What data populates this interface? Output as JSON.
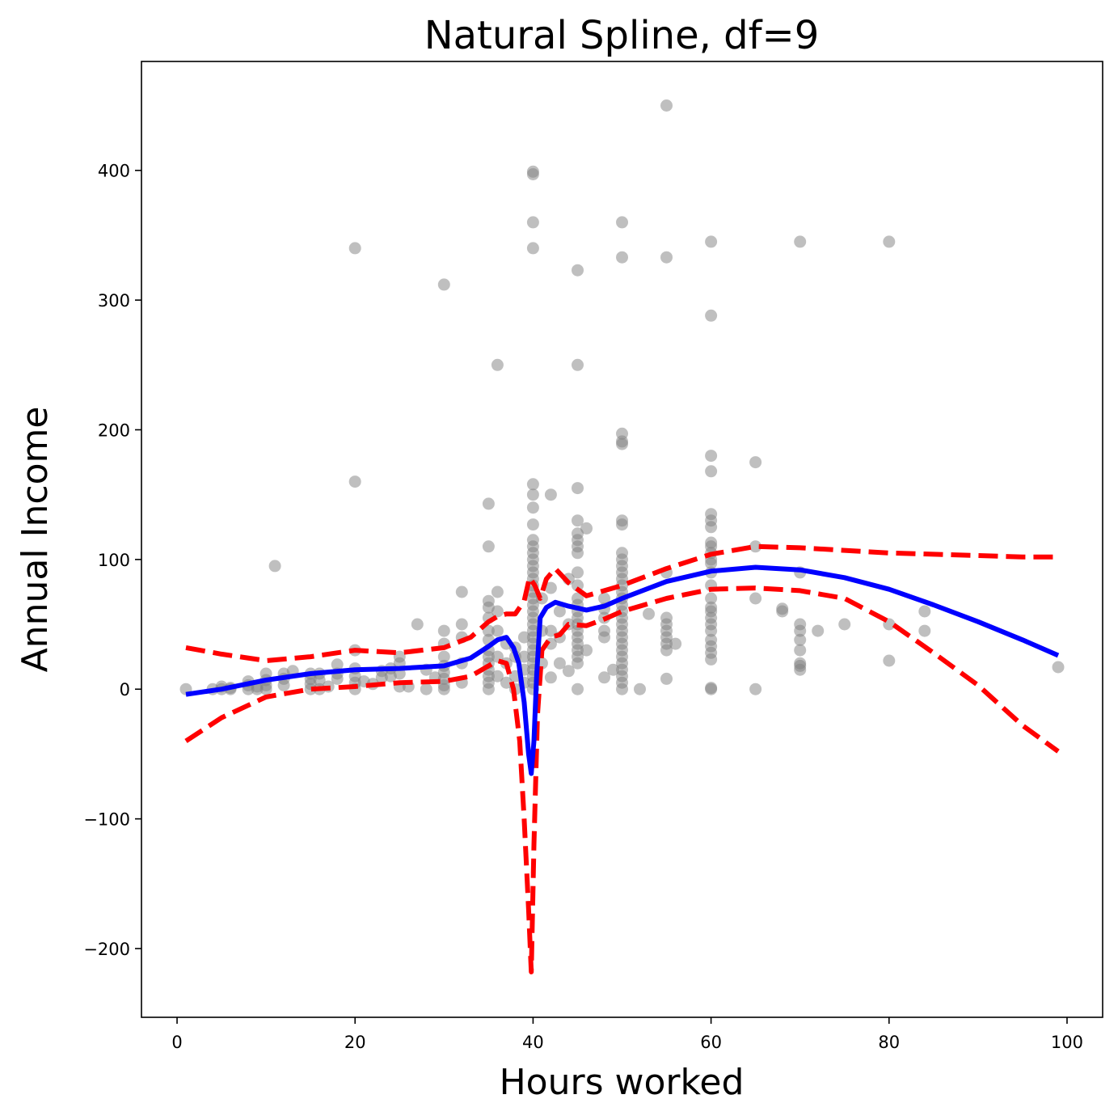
{
  "chart_data": {
    "type": "scatter",
    "title": "Natural Spline, df=9",
    "xlabel": "Hours worked",
    "ylabel": "Annual Income",
    "xlim": [
      -4,
      104
    ],
    "ylim": [
      -253,
      484
    ],
    "xticks": [
      0,
      20,
      40,
      60,
      80,
      100
    ],
    "yticks": [
      -200,
      -100,
      0,
      100,
      200,
      300,
      400
    ],
    "grid": false,
    "colors": {
      "points": "#808080",
      "fit": "#0000ff",
      "band": "#ff0000"
    },
    "points": [
      [
        1,
        0
      ],
      [
        4,
        0
      ],
      [
        5,
        0
      ],
      [
        5,
        2
      ],
      [
        6,
        0
      ],
      [
        6,
        1
      ],
      [
        8,
        0
      ],
      [
        8,
        3
      ],
      [
        8,
        6
      ],
      [
        9,
        0
      ],
      [
        9,
        2
      ],
      [
        10,
        0
      ],
      [
        10,
        3
      ],
      [
        10,
        7
      ],
      [
        10,
        12
      ],
      [
        11,
        95
      ],
      [
        12,
        3
      ],
      [
        12,
        8
      ],
      [
        12,
        12
      ],
      [
        13,
        14
      ],
      [
        15,
        0
      ],
      [
        15,
        4
      ],
      [
        15,
        8
      ],
      [
        15,
        12
      ],
      [
        16,
        0
      ],
      [
        16,
        7
      ],
      [
        16,
        12
      ],
      [
        17,
        2
      ],
      [
        18,
        8
      ],
      [
        18,
        12
      ],
      [
        18,
        19
      ],
      [
        20,
        0
      ],
      [
        20,
        5
      ],
      [
        20,
        10
      ],
      [
        20,
        16
      ],
      [
        20,
        30
      ],
      [
        20,
        160
      ],
      [
        20,
        340
      ],
      [
        21,
        6
      ],
      [
        22,
        4
      ],
      [
        23,
        9
      ],
      [
        23,
        14
      ],
      [
        24,
        10
      ],
      [
        24,
        16
      ],
      [
        25,
        2
      ],
      [
        25,
        12
      ],
      [
        25,
        20
      ],
      [
        25,
        25
      ],
      [
        26,
        2
      ],
      [
        27,
        50
      ],
      [
        28,
        0
      ],
      [
        28,
        15
      ],
      [
        29,
        9
      ],
      [
        30,
        0
      ],
      [
        30,
        3
      ],
      [
        30,
        8
      ],
      [
        30,
        13
      ],
      [
        30,
        18
      ],
      [
        30,
        25
      ],
      [
        30,
        35
      ],
      [
        30,
        45
      ],
      [
        30,
        312
      ],
      [
        32,
        5
      ],
      [
        32,
        20
      ],
      [
        32,
        40
      ],
      [
        32,
        50
      ],
      [
        32,
        75
      ],
      [
        35,
        0
      ],
      [
        35,
        5
      ],
      [
        35,
        10
      ],
      [
        35,
        15
      ],
      [
        35,
        20
      ],
      [
        35,
        25
      ],
      [
        35,
        30
      ],
      [
        35,
        38
      ],
      [
        35,
        45
      ],
      [
        35,
        55
      ],
      [
        35,
        63
      ],
      [
        35,
        68
      ],
      [
        35,
        110
      ],
      [
        35,
        143
      ],
      [
        36,
        10
      ],
      [
        36,
        25
      ],
      [
        36,
        45
      ],
      [
        36,
        60
      ],
      [
        36,
        75
      ],
      [
        36,
        250
      ],
      [
        37,
        5
      ],
      [
        37,
        20
      ],
      [
        37,
        35
      ],
      [
        38,
        0
      ],
      [
        38,
        10
      ],
      [
        38,
        25
      ],
      [
        38,
        32
      ],
      [
        39,
        5
      ],
      [
        39,
        15
      ],
      [
        39,
        25
      ],
      [
        39,
        40
      ],
      [
        40,
        0
      ],
      [
        40,
        5
      ],
      [
        40,
        10
      ],
      [
        40,
        15
      ],
      [
        40,
        20
      ],
      [
        40,
        25
      ],
      [
        40,
        30
      ],
      [
        40,
        35
      ],
      [
        40,
        40
      ],
      [
        40,
        45
      ],
      [
        40,
        50
      ],
      [
        40,
        55
      ],
      [
        40,
        60
      ],
      [
        40,
        65
      ],
      [
        40,
        70
      ],
      [
        40,
        75
      ],
      [
        40,
        80
      ],
      [
        40,
        85
      ],
      [
        40,
        90
      ],
      [
        40,
        95
      ],
      [
        40,
        100
      ],
      [
        40,
        105
      ],
      [
        40,
        110
      ],
      [
        40,
        115
      ],
      [
        40,
        127
      ],
      [
        40,
        140
      ],
      [
        40,
        150
      ],
      [
        40,
        158
      ],
      [
        40,
        340
      ],
      [
        40,
        360
      ],
      [
        40,
        397
      ],
      [
        40,
        399
      ],
      [
        41,
        20
      ],
      [
        41,
        45
      ],
      [
        41,
        70
      ],
      [
        42,
        9
      ],
      [
        42,
        35
      ],
      [
        42,
        45
      ],
      [
        42,
        78
      ],
      [
        42,
        150
      ],
      [
        43,
        20
      ],
      [
        43,
        40
      ],
      [
        43,
        60
      ],
      [
        44,
        14
      ],
      [
        44,
        50
      ],
      [
        44,
        85
      ],
      [
        45,
        0
      ],
      [
        45,
        20
      ],
      [
        45,
        25
      ],
      [
        45,
        30
      ],
      [
        45,
        35
      ],
      [
        45,
        40
      ],
      [
        45,
        45
      ],
      [
        45,
        50
      ],
      [
        45,
        55
      ],
      [
        45,
        60
      ],
      [
        45,
        65
      ],
      [
        45,
        70
      ],
      [
        45,
        80
      ],
      [
        45,
        90
      ],
      [
        45,
        105
      ],
      [
        45,
        110
      ],
      [
        45,
        115
      ],
      [
        45,
        120
      ],
      [
        45,
        130
      ],
      [
        45,
        155
      ],
      [
        45,
        250
      ],
      [
        45,
        323
      ],
      [
        46,
        30
      ],
      [
        46,
        124
      ],
      [
        48,
        9
      ],
      [
        48,
        40
      ],
      [
        48,
        45
      ],
      [
        48,
        55
      ],
      [
        48,
        62
      ],
      [
        48,
        70
      ],
      [
        49,
        15
      ],
      [
        50,
        0
      ],
      [
        50,
        5
      ],
      [
        50,
        10
      ],
      [
        50,
        15
      ],
      [
        50,
        20
      ],
      [
        50,
        25
      ],
      [
        50,
        30
      ],
      [
        50,
        35
      ],
      [
        50,
        40
      ],
      [
        50,
        45
      ],
      [
        50,
        50
      ],
      [
        50,
        55
      ],
      [
        50,
        60
      ],
      [
        50,
        65
      ],
      [
        50,
        70
      ],
      [
        50,
        75
      ],
      [
        50,
        80
      ],
      [
        50,
        85
      ],
      [
        50,
        90
      ],
      [
        50,
        95
      ],
      [
        50,
        100
      ],
      [
        50,
        105
      ],
      [
        50,
        127
      ],
      [
        50,
        130
      ],
      [
        50,
        189
      ],
      [
        50,
        191
      ],
      [
        50,
        197
      ],
      [
        50,
        333
      ],
      [
        50,
        360
      ],
      [
        52,
        0
      ],
      [
        53,
        58
      ],
      [
        55,
        8
      ],
      [
        55,
        30
      ],
      [
        55,
        35
      ],
      [
        55,
        40
      ],
      [
        55,
        45
      ],
      [
        55,
        50
      ],
      [
        55,
        55
      ],
      [
        55,
        90
      ],
      [
        55,
        333
      ],
      [
        55,
        450
      ],
      [
        56,
        35
      ],
      [
        60,
        0
      ],
      [
        60,
        1
      ],
      [
        60,
        23
      ],
      [
        60,
        28
      ],
      [
        60,
        33
      ],
      [
        60,
        38
      ],
      [
        60,
        45
      ],
      [
        60,
        50
      ],
      [
        60,
        55
      ],
      [
        60,
        60
      ],
      [
        60,
        63
      ],
      [
        60,
        70
      ],
      [
        60,
        80
      ],
      [
        60,
        90
      ],
      [
        60,
        97
      ],
      [
        60,
        100
      ],
      [
        60,
        105
      ],
      [
        60,
        110
      ],
      [
        60,
        113
      ],
      [
        60,
        125
      ],
      [
        60,
        130
      ],
      [
        60,
        135
      ],
      [
        60,
        168
      ],
      [
        60,
        180
      ],
      [
        60,
        288
      ],
      [
        60,
        345
      ],
      [
        65,
        0
      ],
      [
        65,
        70
      ],
      [
        65,
        110
      ],
      [
        65,
        175
      ],
      [
        68,
        60
      ],
      [
        68,
        62
      ],
      [
        70,
        15
      ],
      [
        70,
        18
      ],
      [
        70,
        20
      ],
      [
        70,
        30
      ],
      [
        70,
        38
      ],
      [
        70,
        45
      ],
      [
        70,
        50
      ],
      [
        70,
        90
      ],
      [
        70,
        345
      ],
      [
        72,
        45
      ],
      [
        75,
        50
      ],
      [
        80,
        22
      ],
      [
        80,
        50
      ],
      [
        80,
        345
      ],
      [
        84,
        45
      ],
      [
        84,
        60
      ],
      [
        99,
        17
      ]
    ],
    "fit": [
      [
        1,
        -4
      ],
      [
        5,
        0
      ],
      [
        10,
        7
      ],
      [
        15,
        12
      ],
      [
        20,
        15
      ],
      [
        25,
        16
      ],
      [
        30,
        18
      ],
      [
        33,
        24
      ],
      [
        35,
        33
      ],
      [
        36,
        38
      ],
      [
        37,
        40
      ],
      [
        37.8,
        32
      ],
      [
        38.4,
        20
      ],
      [
        39,
        -10
      ],
      [
        39.5,
        -50
      ],
      [
        39.8,
        -65
      ],
      [
        40.1,
        -40
      ],
      [
        40.4,
        10
      ],
      [
        40.8,
        55
      ],
      [
        41.5,
        63
      ],
      [
        42.5,
        67
      ],
      [
        44,
        64
      ],
      [
        46,
        61
      ],
      [
        48,
        64
      ],
      [
        50,
        70
      ],
      [
        55,
        83
      ],
      [
        60,
        91
      ],
      [
        65,
        94
      ],
      [
        70,
        92
      ],
      [
        75,
        86
      ],
      [
        80,
        77
      ],
      [
        85,
        65
      ],
      [
        90,
        52
      ],
      [
        95,
        38
      ],
      [
        99,
        26
      ]
    ],
    "upper": [
      [
        1,
        32
      ],
      [
        5,
        27
      ],
      [
        10,
        22
      ],
      [
        15,
        25
      ],
      [
        20,
        30
      ],
      [
        25,
        28
      ],
      [
        30,
        32
      ],
      [
        33,
        40
      ],
      [
        35,
        52
      ],
      [
        36,
        56
      ],
      [
        37,
        58
      ],
      [
        38,
        58
      ],
      [
        39,
        68
      ],
      [
        39.6,
        86
      ],
      [
        40.2,
        80
      ],
      [
        40.8,
        70
      ],
      [
        41.5,
        85
      ],
      [
        42.5,
        93
      ],
      [
        44,
        82
      ],
      [
        46,
        72
      ],
      [
        48,
        76
      ],
      [
        50,
        80
      ],
      [
        55,
        93
      ],
      [
        60,
        104
      ],
      [
        65,
        110
      ],
      [
        70,
        109
      ],
      [
        75,
        107
      ],
      [
        80,
        105
      ],
      [
        85,
        104
      ],
      [
        90,
        103
      ],
      [
        95,
        102
      ],
      [
        99,
        102
      ]
    ],
    "lower": [
      [
        1,
        -40
      ],
      [
        5,
        -22
      ],
      [
        10,
        -6
      ],
      [
        15,
        0
      ],
      [
        20,
        2
      ],
      [
        25,
        5
      ],
      [
        30,
        6
      ],
      [
        33,
        10
      ],
      [
        35,
        18
      ],
      [
        36,
        22
      ],
      [
        37,
        20
      ],
      [
        37.8,
        0
      ],
      [
        38.5,
        -40
      ],
      [
        39,
        -100
      ],
      [
        39.5,
        -170
      ],
      [
        39.8,
        -218
      ],
      [
        40.1,
        -120
      ],
      [
        40.5,
        -20
      ],
      [
        41,
        30
      ],
      [
        42,
        40
      ],
      [
        43,
        42
      ],
      [
        44,
        50
      ],
      [
        46,
        49
      ],
      [
        48,
        54
      ],
      [
        50,
        60
      ],
      [
        55,
        70
      ],
      [
        60,
        77
      ],
      [
        65,
        78
      ],
      [
        70,
        76
      ],
      [
        75,
        70
      ],
      [
        80,
        52
      ],
      [
        85,
        28
      ],
      [
        90,
        3
      ],
      [
        95,
        -28
      ],
      [
        99,
        -48
      ]
    ]
  }
}
